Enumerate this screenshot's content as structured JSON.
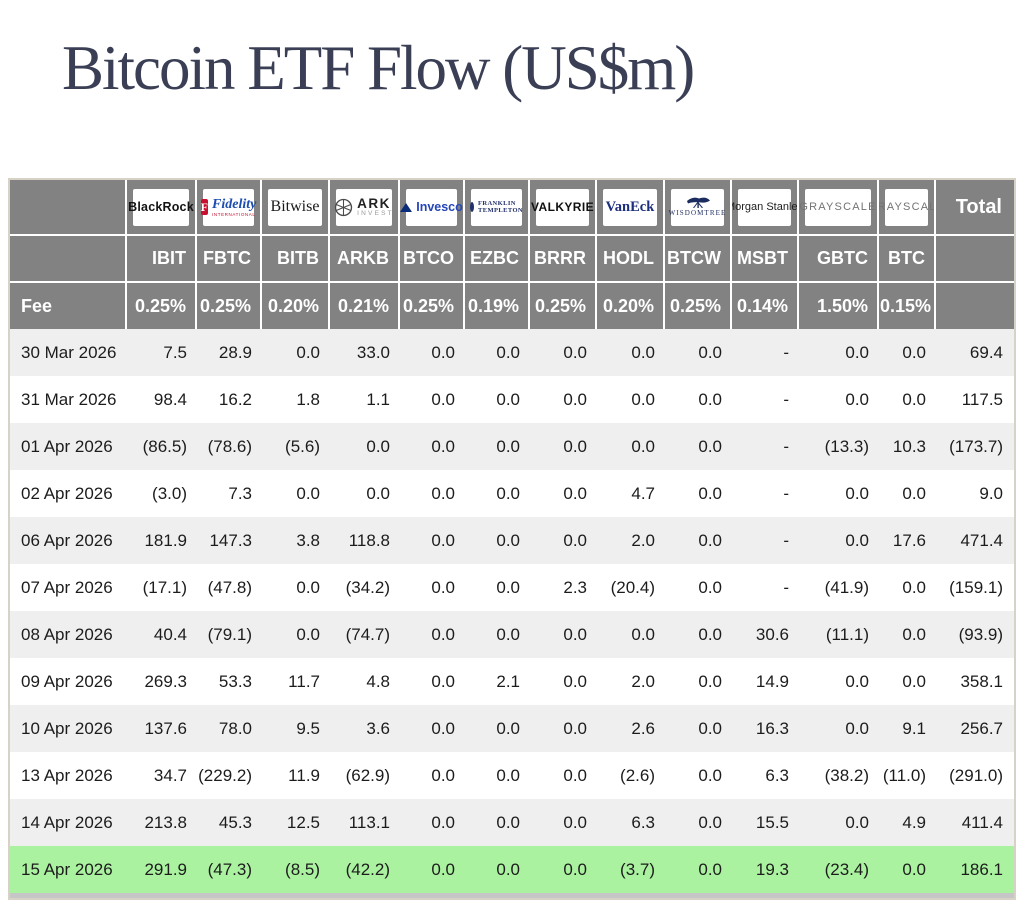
{
  "title": "Bitcoin ETF Flow (US$m)",
  "colors": {
    "header-gray": "#828282",
    "row-alt": "#efefef",
    "row-white": "#ffffff",
    "highlight-green": "#abf2a0",
    "negative-red": "#ee4337",
    "title-navy": "#3a3f55",
    "text-dark": "#1c1c1c",
    "border-tan": "#d8d2c6",
    "bottom-strip": "#c6c6c6"
  },
  "chart_data": {
    "type": "table",
    "title": "Bitcoin ETF Flow (US$m)",
    "corner_label": "",
    "fee_label": "Fee",
    "total_label": "Total",
    "columns": [
      {
        "id": "IBIT",
        "provider": "BlackRock",
        "ticker": "IBIT",
        "fee": "0.25%",
        "logo": {
          "type": "blackrock",
          "text": "BlackRock"
        }
      },
      {
        "id": "FBTC",
        "provider": "Fidelity",
        "ticker": "FBTC",
        "fee": "0.25%",
        "logo": {
          "type": "fidelity",
          "badge": "F",
          "text": "Fidelity",
          "sub": "INTERNATIONAL"
        }
      },
      {
        "id": "BITB",
        "provider": "Bitwise",
        "ticker": "BITB",
        "fee": "0.20%",
        "logo": {
          "type": "bitwise",
          "text": "Bitwise"
        }
      },
      {
        "id": "ARKB",
        "provider": "ARK Invest",
        "ticker": "ARKB",
        "fee": "0.21%",
        "logo": {
          "type": "ark",
          "text": "ARK",
          "sub": "INVEST"
        }
      },
      {
        "id": "BTCO",
        "provider": "Invesco",
        "ticker": "BTCO",
        "fee": "0.25%",
        "logo": {
          "type": "invesco",
          "text": "Invesco"
        }
      },
      {
        "id": "EZBC",
        "provider": "Franklin Templeton",
        "ticker": "EZBC",
        "fee": "0.19%",
        "logo": {
          "type": "franklin",
          "line1": "FRANKLIN",
          "line2": "TEMPLETON"
        }
      },
      {
        "id": "BRRR",
        "provider": "Valkyrie",
        "ticker": "BRRR",
        "fee": "0.25%",
        "logo": {
          "type": "valkyrie",
          "text": "VALKYRIE"
        }
      },
      {
        "id": "HODL",
        "provider": "VanEck",
        "ticker": "HODL",
        "fee": "0.20%",
        "logo": {
          "type": "vaneck",
          "text": "VanEck"
        }
      },
      {
        "id": "BTCW",
        "provider": "WisdomTree",
        "ticker": "BTCW",
        "fee": "0.25%",
        "logo": {
          "type": "wisdomtree",
          "text": "WISDOMTREE"
        }
      },
      {
        "id": "MSBT",
        "provider": "Morgan Stanley",
        "ticker": "MSBT",
        "fee": "0.14%",
        "logo": {
          "type": "morganstanley",
          "text": "Morgan Stanley"
        }
      },
      {
        "id": "GBTC",
        "provider": "Grayscale",
        "ticker": "GBTC",
        "fee": "1.50%",
        "logo": {
          "type": "grayscale",
          "text": "GRAYSCALE"
        }
      },
      {
        "id": "BTC",
        "provider": "Grayscale",
        "ticker": "BTC",
        "fee": "0.15%",
        "logo": {
          "type": "grayscale",
          "text": "GRAYSCALE"
        }
      }
    ],
    "rows": [
      {
        "date": "30 Mar 2026",
        "values": [
          "7.5",
          "28.9",
          "0.0",
          "33.0",
          "0.0",
          "0.0",
          "0.0",
          "0.0",
          "0.0",
          "-",
          "0.0",
          "0.0"
        ],
        "total": "69.4",
        "highlight": false
      },
      {
        "date": "31 Mar 2026",
        "values": [
          "98.4",
          "16.2",
          "1.8",
          "1.1",
          "0.0",
          "0.0",
          "0.0",
          "0.0",
          "0.0",
          "-",
          "0.0",
          "0.0"
        ],
        "total": "117.5",
        "highlight": false
      },
      {
        "date": "01 Apr 2026",
        "values": [
          "(86.5)",
          "(78.6)",
          "(5.6)",
          "0.0",
          "0.0",
          "0.0",
          "0.0",
          "0.0",
          "0.0",
          "-",
          "(13.3)",
          "10.3"
        ],
        "total": "(173.7)",
        "highlight": false
      },
      {
        "date": "02 Apr 2026",
        "values": [
          "(3.0)",
          "7.3",
          "0.0",
          "0.0",
          "0.0",
          "0.0",
          "0.0",
          "4.7",
          "0.0",
          "-",
          "0.0",
          "0.0"
        ],
        "total": "9.0",
        "highlight": false
      },
      {
        "date": "06 Apr 2026",
        "values": [
          "181.9",
          "147.3",
          "3.8",
          "118.8",
          "0.0",
          "0.0",
          "0.0",
          "2.0",
          "0.0",
          "-",
          "0.0",
          "17.6"
        ],
        "total": "471.4",
        "highlight": false
      },
      {
        "date": "07 Apr 2026",
        "values": [
          "(17.1)",
          "(47.8)",
          "0.0",
          "(34.2)",
          "0.0",
          "0.0",
          "2.3",
          "(20.4)",
          "0.0",
          "-",
          "(41.9)",
          "0.0"
        ],
        "total": "(159.1)",
        "highlight": false
      },
      {
        "date": "08 Apr 2026",
        "values": [
          "40.4",
          "(79.1)",
          "0.0",
          "(74.7)",
          "0.0",
          "0.0",
          "0.0",
          "0.0",
          "0.0",
          "30.6",
          "(11.1)",
          "0.0"
        ],
        "total": "(93.9)",
        "highlight": false
      },
      {
        "date": "09 Apr 2026",
        "values": [
          "269.3",
          "53.3",
          "11.7",
          "4.8",
          "0.0",
          "2.1",
          "0.0",
          "2.0",
          "0.0",
          "14.9",
          "0.0",
          "0.0"
        ],
        "total": "358.1",
        "highlight": false
      },
      {
        "date": "10 Apr 2026",
        "values": [
          "137.6",
          "78.0",
          "9.5",
          "3.6",
          "0.0",
          "0.0",
          "0.0",
          "2.6",
          "0.0",
          "16.3",
          "0.0",
          "9.1"
        ],
        "total": "256.7",
        "highlight": false
      },
      {
        "date": "13 Apr 2026",
        "values": [
          "34.7",
          "(229.2)",
          "11.9",
          "(62.9)",
          "0.0",
          "0.0",
          "0.0",
          "(2.6)",
          "0.0",
          "6.3",
          "(38.2)",
          "(11.0)"
        ],
        "total": "(291.0)",
        "highlight": false
      },
      {
        "date": "14 Apr 2026",
        "values": [
          "213.8",
          "45.3",
          "12.5",
          "113.1",
          "0.0",
          "0.0",
          "0.0",
          "6.3",
          "0.0",
          "15.5",
          "0.0",
          "4.9"
        ],
        "total": "411.4",
        "highlight": false
      },
      {
        "date": "15 Apr 2026",
        "values": [
          "291.9",
          "(47.3)",
          "(8.5)",
          "(42.2)",
          "0.0",
          "0.0",
          "0.0",
          "(3.7)",
          "0.0",
          "19.3",
          "(23.4)",
          "0.0"
        ],
        "total": "186.1",
        "highlight": true
      }
    ]
  }
}
